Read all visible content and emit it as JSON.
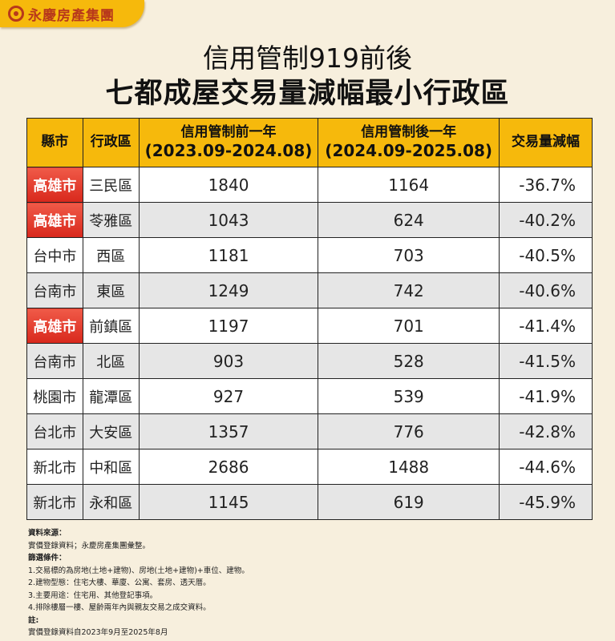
{
  "brand": {
    "name": "永慶房產集團",
    "icon": "yungching-logo-icon",
    "color": "#b8391b",
    "bg": "#f6b90c"
  },
  "title": {
    "line1": "信用管制919前後",
    "line2": "七都成屋交易量減幅最小行政區"
  },
  "table": {
    "headers": {
      "city": "縣市",
      "district": "行政區",
      "before": {
        "label": "信用管制前一年",
        "period": "(2023.09-2024.08)"
      },
      "after": {
        "label": "信用管制後一年",
        "period": "(2024.09-2025.08)"
      },
      "change": "交易量減幅"
    },
    "rows": [
      {
        "city": "高雄市",
        "district": "三民區",
        "before": "1840",
        "after": "1164",
        "change": "-36.7%",
        "highlight": true
      },
      {
        "city": "高雄市",
        "district": "苓雅區",
        "before": "1043",
        "after": "624",
        "change": "-40.2%",
        "highlight": true
      },
      {
        "city": "台中市",
        "district": "西區",
        "before": "1181",
        "after": "703",
        "change": "-40.5%",
        "highlight": false
      },
      {
        "city": "台南市",
        "district": "東區",
        "before": "1249",
        "after": "742",
        "change": "-40.6%",
        "highlight": false
      },
      {
        "city": "高雄市",
        "district": "前鎮區",
        "before": "1197",
        "after": "701",
        "change": "-41.4%",
        "highlight": true
      },
      {
        "city": "台南市",
        "district": "北區",
        "before": "903",
        "after": "528",
        "change": "-41.5%",
        "highlight": false
      },
      {
        "city": "桃園市",
        "district": "龍潭區",
        "before": "927",
        "after": "539",
        "change": "-41.9%",
        "highlight": false
      },
      {
        "city": "台北市",
        "district": "大安區",
        "before": "1357",
        "after": "776",
        "change": "-42.8%",
        "highlight": false
      },
      {
        "city": "新北市",
        "district": "中和區",
        "before": "2686",
        "after": "1488",
        "change": "-44.6%",
        "highlight": false
      },
      {
        "city": "新北市",
        "district": "永和區",
        "before": "1145",
        "after": "619",
        "change": "-45.9%",
        "highlight": false
      }
    ]
  },
  "notes": {
    "source_heading": "資料來源：",
    "source": "實價登錄資料；永慶房產集團彙整。",
    "filter_heading": "篩選條件：",
    "filters": [
      "1.交易標的為房地(土地+建物)、房地(土地+建物)+車位、建物。",
      "2.建物型態：住宅大樓、華廈、公寓、套房、透天厝。",
      "3.主要用途：住宅用、其他登記事項。",
      "4.排除樓層一樓、屋齡兩年內與親友交易之成交資料。"
    ],
    "remark_heading": "註:",
    "remark": "實價登錄資料自2023年9月至2025年8月"
  }
}
